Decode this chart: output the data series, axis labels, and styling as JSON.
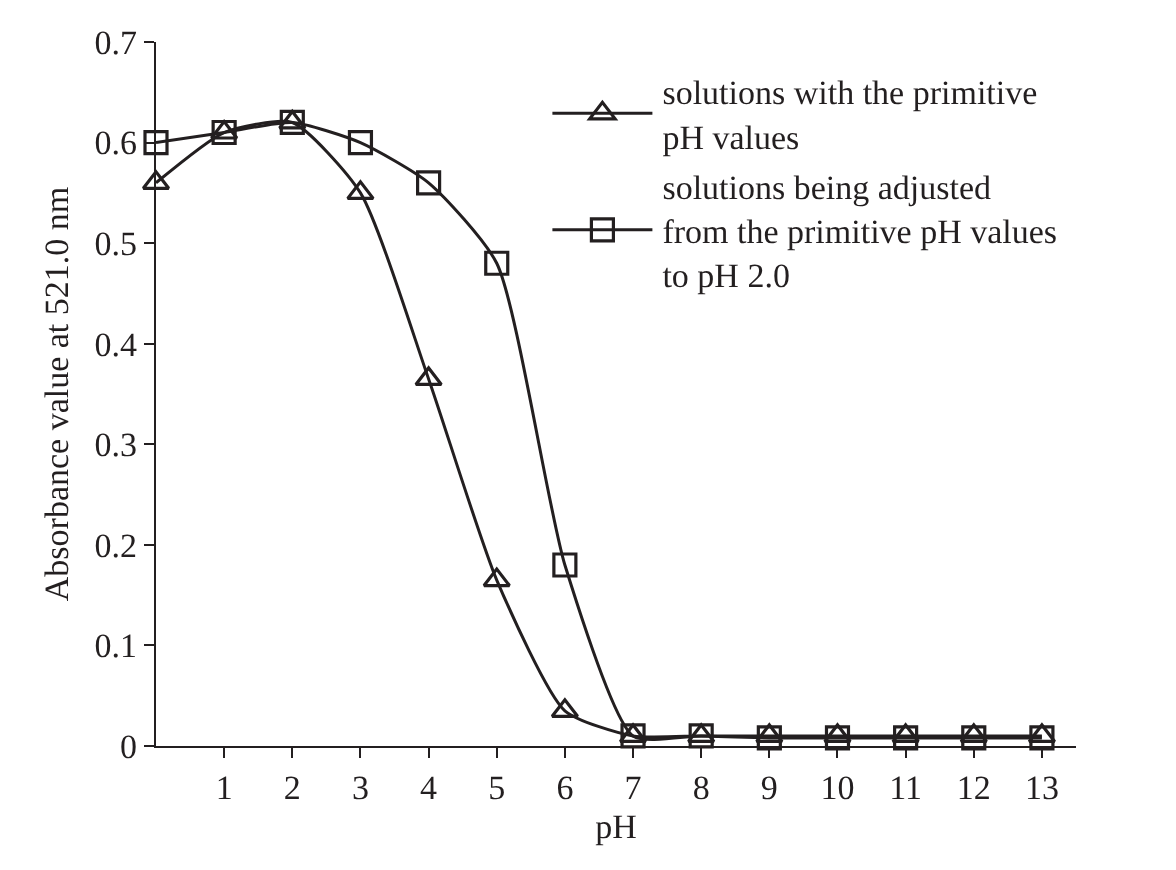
{
  "chart_data": {
    "type": "line",
    "xlabel": "pH",
    "ylabel": "Absorbance value at 521.0 nm",
    "x": [
      0,
      1,
      2,
      3,
      4,
      5,
      6,
      7,
      8,
      9,
      10,
      11,
      12,
      13
    ],
    "series": [
      {
        "name": "solutions with the primitive pH values",
        "color": "#231f20",
        "marker": "triangle",
        "values": [
          0.56,
          0.61,
          0.62,
          0.55,
          0.365,
          0.165,
          0.035,
          0.01,
          0.01,
          0.01,
          0.01,
          0.01,
          0.01,
          0.01
        ]
      },
      {
        "name": "solutions being adjusted from the primitive pH values to pH 2.0",
        "color": "#231f20",
        "marker": "square",
        "values": [
          0.6,
          0.61,
          0.62,
          0.6,
          0.56,
          0.48,
          0.18,
          0.01,
          0.01,
          0.008,
          0.008,
          0.008,
          0.008,
          0.008
        ]
      }
    ],
    "xlim": [
      0,
      13.5
    ],
    "xticks": [
      1,
      2,
      3,
      4,
      5,
      6,
      7,
      8,
      9,
      10,
      11,
      12,
      13
    ],
    "ylim": [
      0,
      0.7
    ],
    "yticks": [
      0,
      0.1,
      0.2,
      0.3,
      0.4,
      0.5,
      0.6,
      0.7
    ],
    "grid": false,
    "legend": "top right",
    "line_style": "solid"
  }
}
